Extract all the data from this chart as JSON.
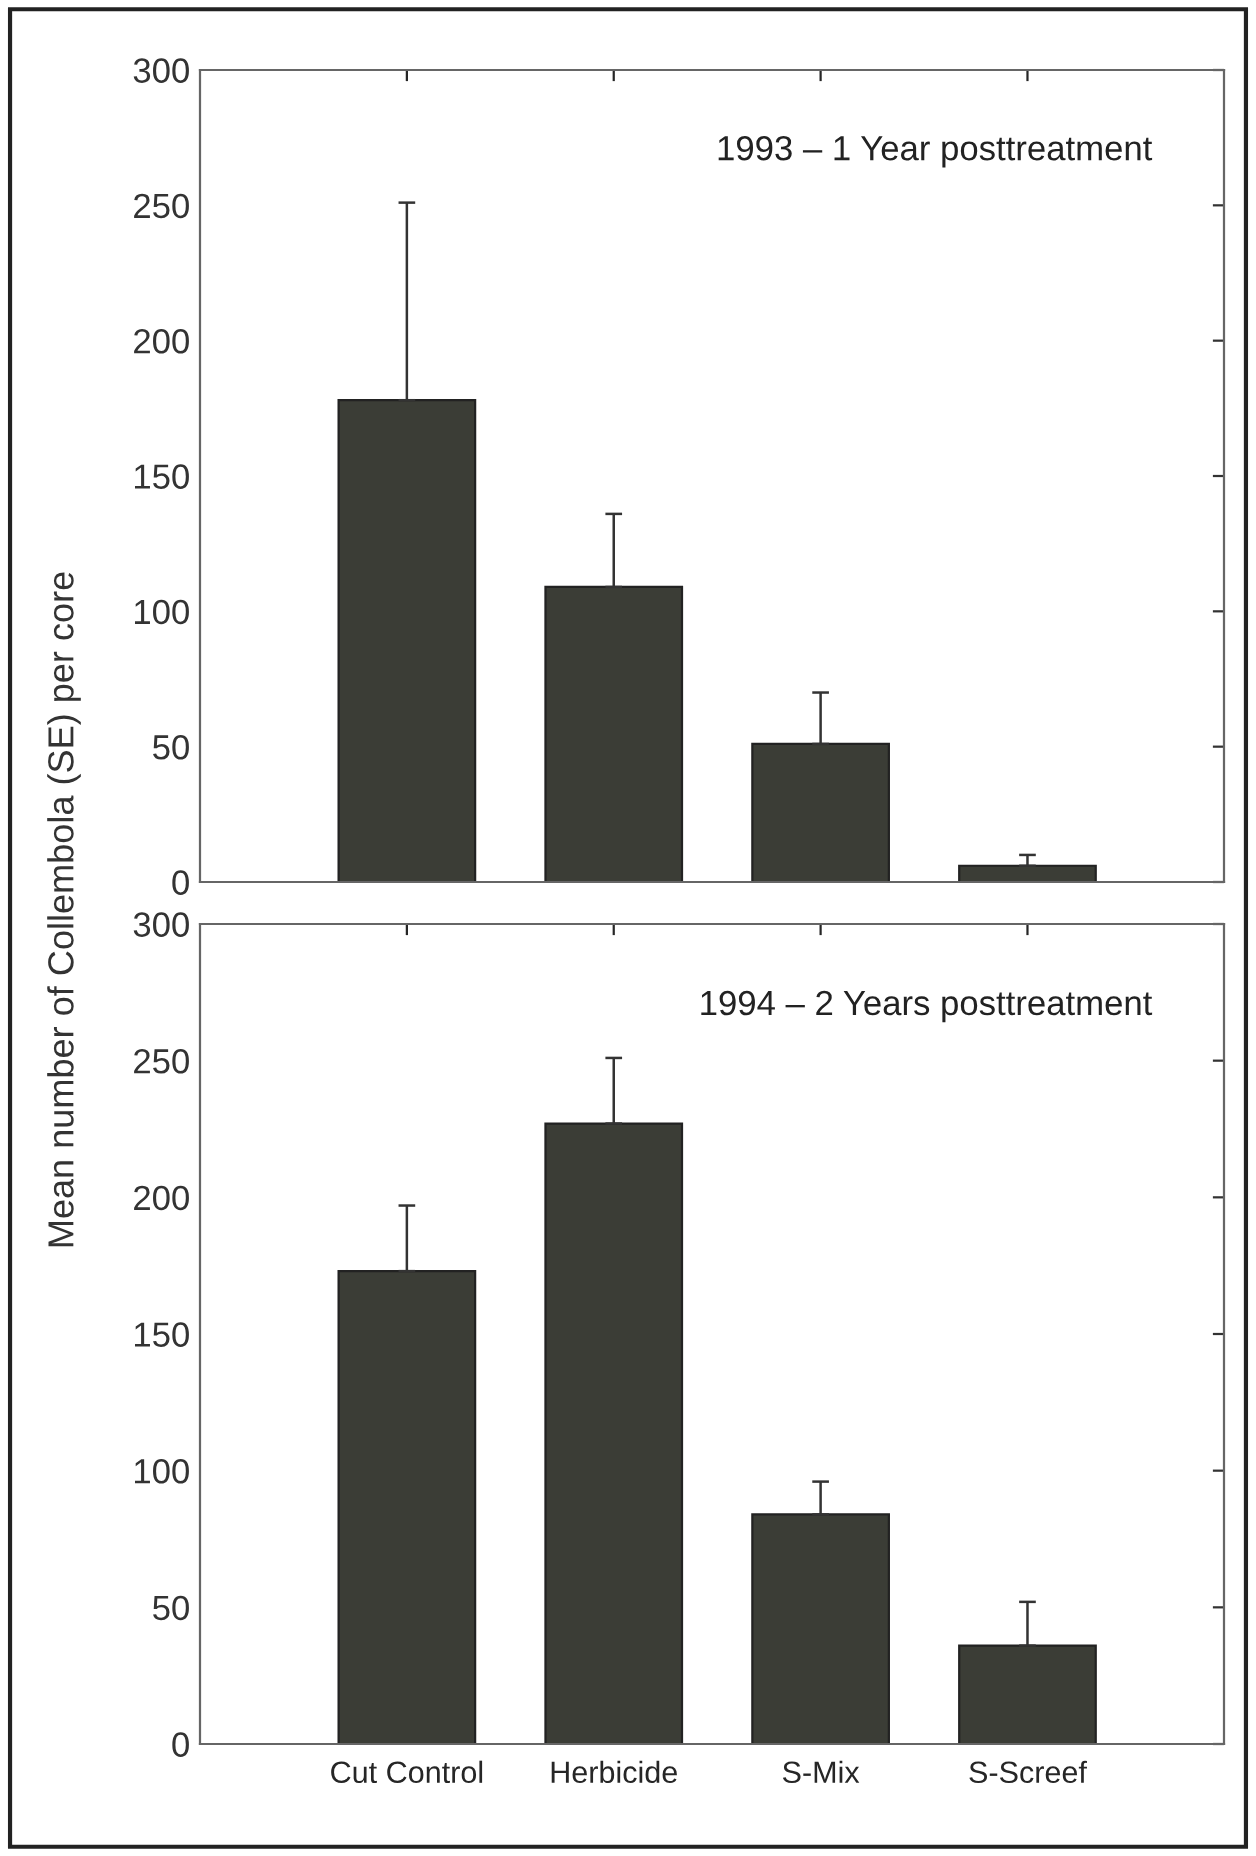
{
  "chart_data": [
    {
      "type": "bar",
      "ylabel": "Mean number of Collembola (SE) per core",
      "categories": [
        null,
        null,
        null,
        null
      ],
      "values": [
        178,
        109,
        51,
        6
      ],
      "errors": [
        [
          178,
          251
        ],
        [
          109,
          136
        ],
        [
          51,
          70
        ],
        [
          6,
          10
        ]
      ],
      "color": "#3b3d36",
      "ylim": [
        0,
        300
      ],
      "yticks": [
        0,
        50,
        100,
        150,
        200,
        250,
        300
      ],
      "grid": false,
      "annotations": [
        "1993 – 1 Year posttreatment"
      ]
    },
    {
      "type": "bar",
      "categories": [
        "Cut Control",
        "Herbicide",
        "S-Mix",
        "S-Screef"
      ],
      "values": [
        173,
        227,
        84,
        36
      ],
      "errors": [
        [
          173,
          197
        ],
        [
          227,
          251
        ],
        [
          84,
          96
        ],
        [
          36,
          52
        ]
      ],
      "color": "#3b3d36",
      "ylim": [
        0,
        300
      ],
      "yticks": [
        0,
        50,
        100,
        150,
        200,
        250,
        300
      ],
      "grid": false,
      "annotations": [
        "1994 – 2 Years posttreatment"
      ]
    }
  ]
}
